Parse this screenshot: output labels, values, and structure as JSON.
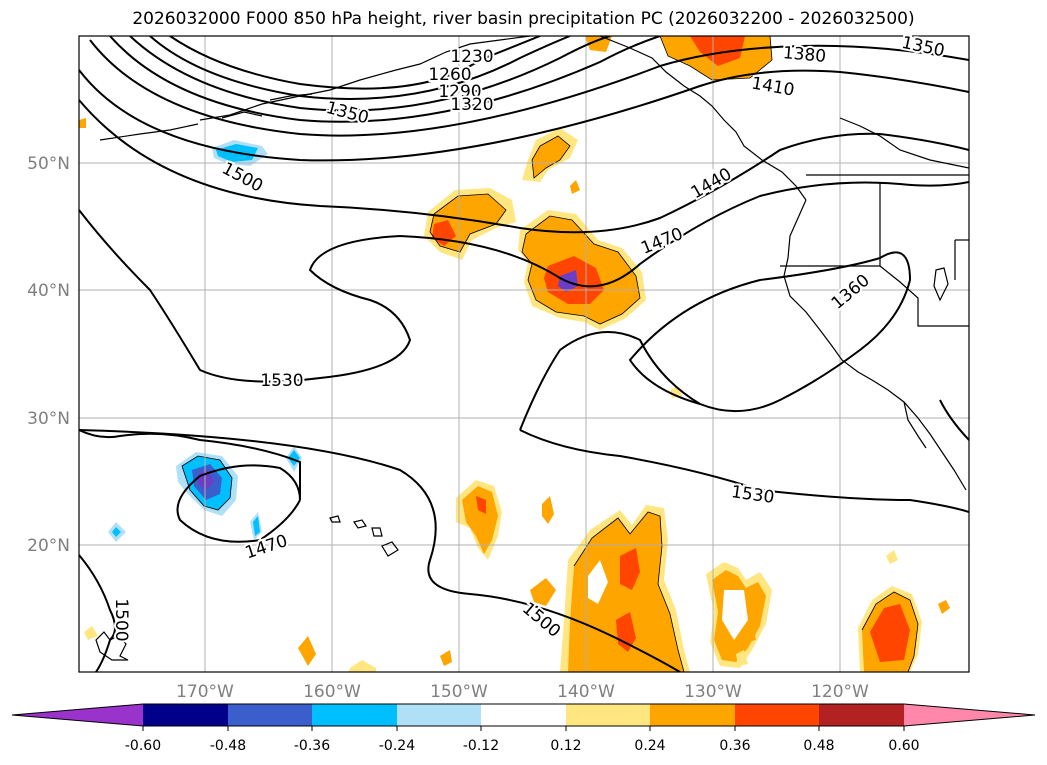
{
  "title": "2026032000 F000 850 hPa height, river basin precipitation PC (2026032200 - 2026032500)",
  "map": {
    "lat_labels": [
      "50°N",
      "40°N",
      "30°N",
      "20°N"
    ],
    "lon_labels": [
      "170°W",
      "160°W",
      "150°W",
      "140°W",
      "130°W",
      "120°W"
    ],
    "contour_labels": [
      "1230",
      "1260",
      "1290",
      "1320",
      "1350",
      "1380",
      "1410",
      "1350",
      "1500",
      "1440",
      "1470",
      "1360",
      "1530",
      "1530",
      "1470",
      "1500",
      "1500"
    ],
    "colors": {
      "light_yellow": "#ffe680",
      "orange": "#ffa500",
      "red_orange": "#ff4500",
      "dark_red": "#b22222",
      "light_blue": "#b0e0f8",
      "deep_sky_blue": "#00bfff",
      "royal_blue": "#3a5fcd",
      "purple": "#6a3fc6"
    }
  },
  "colorbar": {
    "ticks": [
      "-0.60",
      "-0.48",
      "-0.36",
      "-0.24",
      "-0.12",
      "0.12",
      "0.24",
      "0.36",
      "0.48",
      "0.60"
    ],
    "colors": [
      "#9933cc",
      "#00008b",
      "#3a5fcd",
      "#00bfff",
      "#b0e0f8",
      "#ffffff",
      "#ffe680",
      "#ffa500",
      "#ff4500",
      "#b22222",
      "#ff88aa"
    ]
  }
}
